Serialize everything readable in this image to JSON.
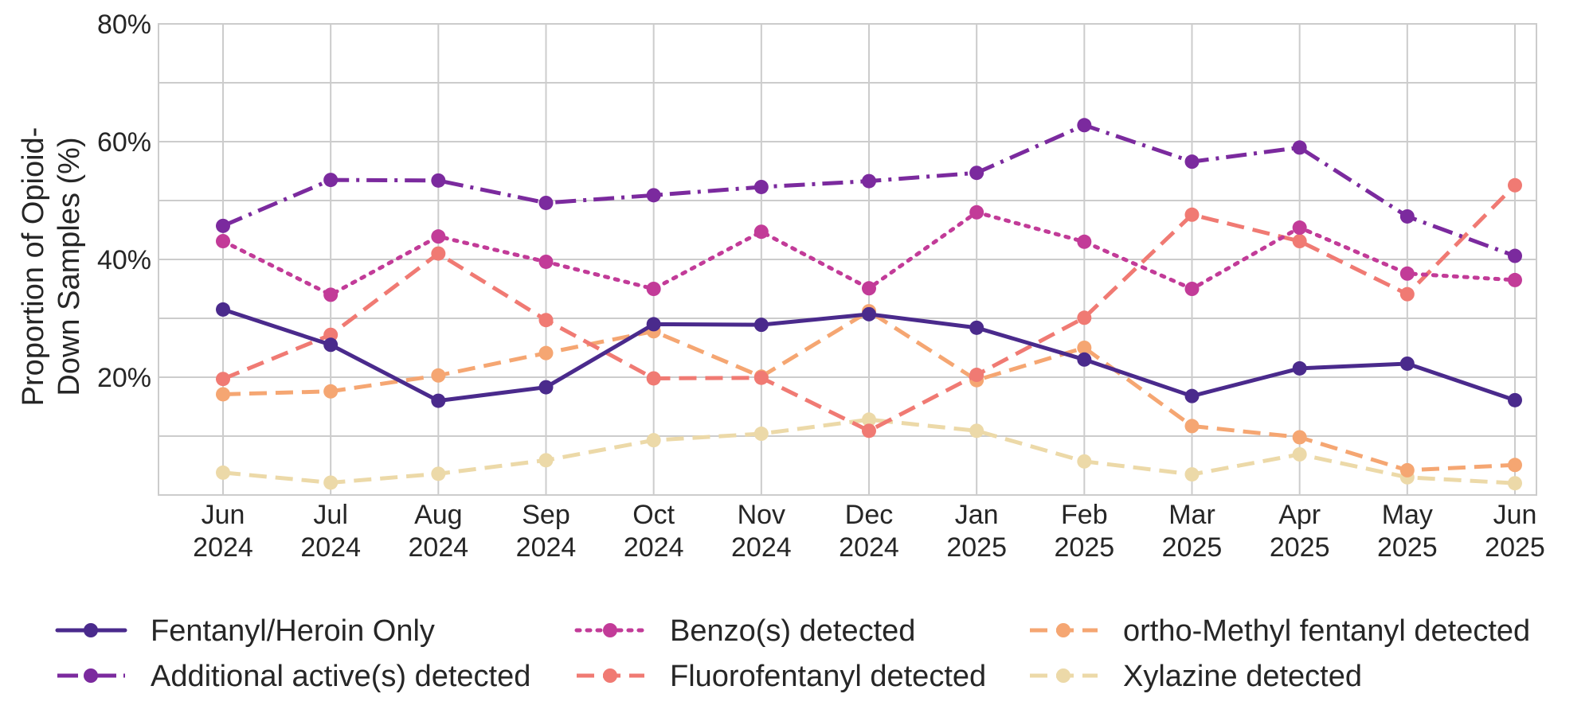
{
  "chart_data": {
    "type": "line",
    "ylabel": [
      "Proportion of Opioid-",
      "Down Samples (%)"
    ],
    "ylim": [
      0,
      80
    ],
    "y_ticks": [
      "20%",
      "40%",
      "60%",
      "80%"
    ],
    "y_tick_values": [
      20,
      40,
      60,
      80
    ],
    "y_gridlines": [
      10,
      20,
      30,
      40,
      50,
      60,
      70,
      80
    ],
    "grid": true,
    "legend_position": "bottom",
    "categories": [
      [
        "Jun",
        "2024"
      ],
      [
        "Jul",
        "2024"
      ],
      [
        "Aug",
        "2024"
      ],
      [
        "Sep",
        "2024"
      ],
      [
        "Oct",
        "2024"
      ],
      [
        "Nov",
        "2024"
      ],
      [
        "Dec",
        "2024"
      ],
      [
        "Jan",
        "2025"
      ],
      [
        "Feb",
        "2025"
      ],
      [
        "Mar",
        "2025"
      ],
      [
        "Apr",
        "2025"
      ],
      [
        "May",
        "2025"
      ],
      [
        "Jun",
        "2025"
      ]
    ],
    "series": [
      {
        "name": "Fentanyl/Heroin Only",
        "color": "#4a2a8c",
        "style": "solid",
        "values": [
          31.5,
          25.5,
          16,
          18.3,
          29,
          28.9,
          30.7,
          28.4,
          23,
          16.8,
          21.5,
          22.3,
          16.1
        ]
      },
      {
        "name": "Additional active(s) detected",
        "color": "#7b2a9e",
        "style": "dashdot",
        "values": [
          45.7,
          53.5,
          53.4,
          49.6,
          50.9,
          52.3,
          53.3,
          54.7,
          62.8,
          56.6,
          59,
          47.3,
          40.6
        ]
      },
      {
        "name": "Benzo(s) detected",
        "color": "#c23b98",
        "style": "dotted",
        "values": [
          43.1,
          34,
          43.9,
          39.6,
          35,
          44.7,
          35.1,
          48,
          43,
          35,
          45.4,
          37.6,
          36.5
        ]
      },
      {
        "name": "Fluorofentanyl detected",
        "color": "#f07a73",
        "style": "dashed",
        "values": [
          19.7,
          27.2,
          41,
          29.7,
          19.8,
          19.9,
          10.9,
          20.4,
          30.1,
          47.6,
          43.1,
          34.1,
          52.6
        ]
      },
      {
        "name": "ortho-Methyl fentanyl detected",
        "color": "#f5a672",
        "style": "dashed",
        "values": [
          17.1,
          17.6,
          20.3,
          24.1,
          27.8,
          20.1,
          31.2,
          19.5,
          25,
          11.7,
          9.8,
          4.2,
          5.1
        ]
      },
      {
        "name": "Xylazine detected",
        "color": "#ecd9a8",
        "style": "dashed",
        "values": [
          3.8,
          2.1,
          3.6,
          5.9,
          9.3,
          10.4,
          12.8,
          10.9,
          5.7,
          3.5,
          6.9,
          3,
          2
        ]
      }
    ]
  }
}
